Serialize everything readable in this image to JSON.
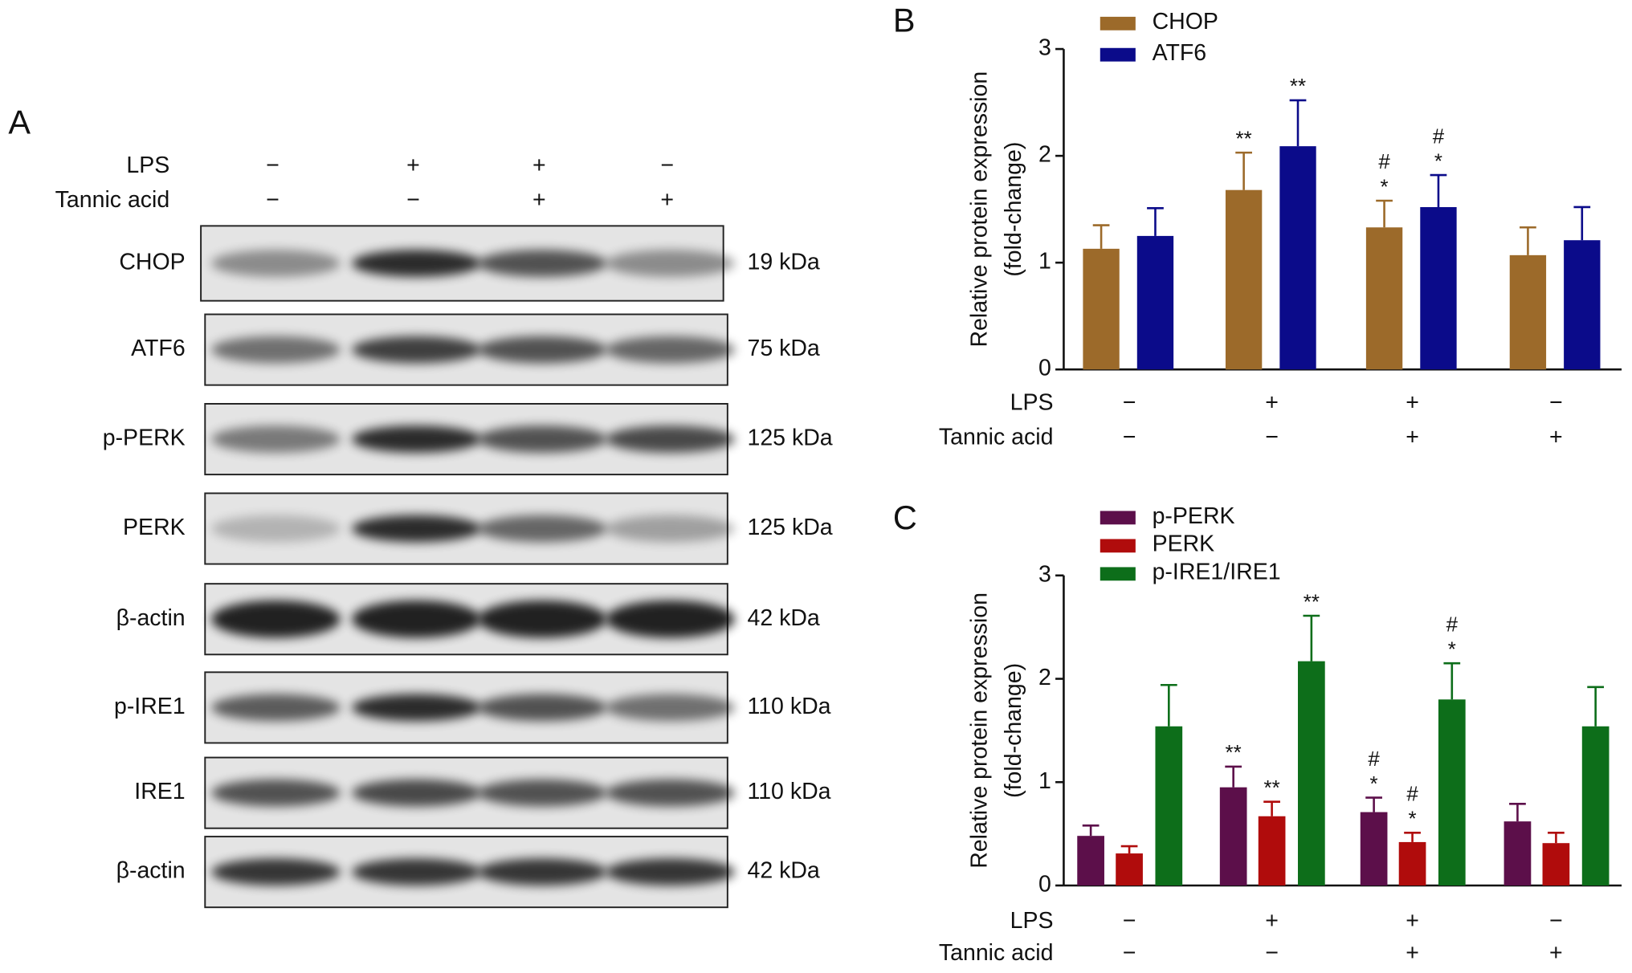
{
  "blot": {
    "panel": "A",
    "conditions": [
      {
        "label": "LPS",
        "values": [
          "−",
          "+",
          "+",
          "−"
        ]
      },
      {
        "label": "Tannic acid",
        "values": [
          "−",
          "−",
          "+",
          "+"
        ]
      }
    ],
    "rows": [
      {
        "label": "CHOP",
        "size": "19 kDa"
      },
      {
        "label": "ATF6",
        "size": "75 kDa"
      },
      {
        "label": "p-PERK",
        "size": "125 kDa"
      },
      {
        "label": "PERK",
        "size": "125 kDa"
      },
      {
        "label": "β-actin",
        "size": "42 kDa"
      },
      {
        "label": "p-IRE1",
        "size": "110 kDa"
      },
      {
        "label": "IRE1",
        "size": "110 kDa"
      },
      {
        "label": "β-actin",
        "size": "42 kDa"
      }
    ]
  },
  "chart_data": [
    {
      "type": "bar",
      "panel": "B",
      "y_label": [
        "Relative protein expression",
        "(fold-change)"
      ],
      "ylim": [
        0,
        3
      ],
      "yticks": [
        0,
        1,
        2,
        3
      ],
      "conditions": [
        {
          "label": "LPS",
          "values": [
            "−",
            "+",
            "+",
            "−"
          ]
        },
        {
          "label": "Tannic acid",
          "values": [
            "−",
            "−",
            "+",
            "+"
          ]
        }
      ],
      "series": [
        {
          "name": "CHOP",
          "color": "#9c6a2a",
          "values": [
            1.13,
            1.68,
            1.33,
            1.07
          ],
          "errors": [
            0.22,
            0.35,
            0.25,
            0.26
          ],
          "annotations": [
            null,
            [
              "**"
            ],
            [
              "#",
              "*"
            ],
            null
          ]
        },
        {
          "name": "ATF6",
          "color": "#0b0b8a",
          "values": [
            1.25,
            2.09,
            1.52,
            1.21
          ],
          "errors": [
            0.26,
            0.43,
            0.3,
            0.31
          ],
          "annotations": [
            null,
            [
              "**"
            ],
            [
              "#",
              "*"
            ],
            null
          ]
        }
      ]
    },
    {
      "type": "bar",
      "panel": "C",
      "y_label": [
        "Relative protein expression",
        "(fold-change)"
      ],
      "ylim": [
        0,
        3
      ],
      "yticks": [
        0,
        1,
        2,
        3
      ],
      "conditions": [
        {
          "label": "LPS",
          "values": [
            "−",
            "+",
            "+",
            "−"
          ]
        },
        {
          "label": "Tannic acid",
          "values": [
            "−",
            "−",
            "+",
            "+"
          ]
        }
      ],
      "series": [
        {
          "name": "p-PERK",
          "color": "#5c0f4a",
          "values": [
            0.48,
            0.95,
            0.71,
            0.62
          ],
          "errors": [
            0.1,
            0.2,
            0.14,
            0.17
          ],
          "annotations": [
            null,
            [
              "**"
            ],
            [
              "#",
              "*"
            ],
            null
          ]
        },
        {
          "name": "PERK",
          "color": "#b00c0c",
          "values": [
            0.31,
            0.67,
            0.42,
            0.41
          ],
          "errors": [
            0.07,
            0.14,
            0.09,
            0.1
          ],
          "annotations": [
            null,
            [
              "**"
            ],
            [
              "#",
              "*"
            ],
            null
          ]
        },
        {
          "name": "p-IRE1/IRE1",
          "color": "#0d6e1a",
          "values": [
            1.54,
            2.17,
            1.8,
            1.54
          ],
          "errors": [
            0.4,
            0.44,
            0.35,
            0.38
          ],
          "annotations": [
            null,
            [
              "**"
            ],
            [
              "#",
              "*"
            ],
            null
          ]
        }
      ]
    }
  ]
}
